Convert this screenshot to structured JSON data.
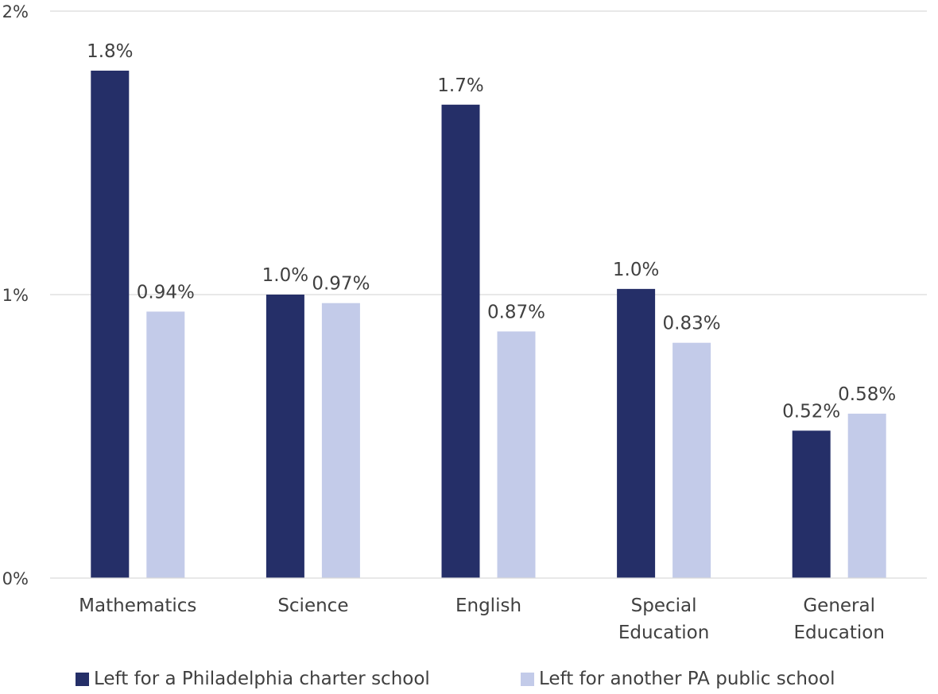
{
  "chart_data": {
    "type": "bar",
    "title": "",
    "xlabel": "",
    "ylabel": "",
    "ylim": [
      0,
      2
    ],
    "yticks": [
      "0%",
      "1%",
      "2%"
    ],
    "grid": true,
    "legend_position": "bottom",
    "categories": [
      [
        "Mathematics"
      ],
      [
        "Science"
      ],
      [
        "English"
      ],
      [
        "Special",
        "Education"
      ],
      [
        "General",
        "Education"
      ]
    ],
    "series": [
      {
        "name": "Left for a Philadelphia charter school",
        "color": "#252f68",
        "values": [
          1.79,
          1.0,
          1.67,
          1.02,
          0.52
        ],
        "labels": [
          "1.8%",
          "1.0%",
          "1.7%",
          "1.0%",
          "0.52%"
        ]
      },
      {
        "name": "Left for another PA public school",
        "color": "#c3cbe9",
        "values": [
          0.94,
          0.97,
          0.87,
          0.83,
          0.58
        ],
        "labels": [
          "0.94%",
          "0.97%",
          "0.87%",
          "0.83%",
          "0.58%"
        ]
      }
    ]
  }
}
